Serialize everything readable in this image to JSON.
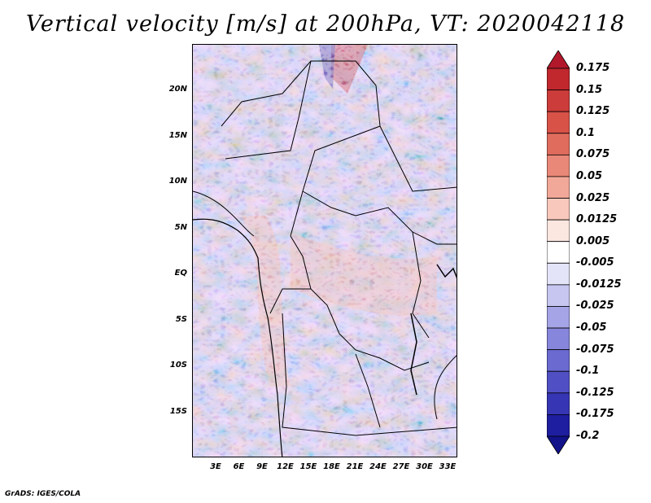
{
  "title": "Vertical velocity [m/s] at 200hPa, VT: 2020042118",
  "credit": "GrADS: IGES/COLA",
  "map": {
    "lat_labels": [
      "20N",
      "15N",
      "10N",
      "5N",
      "EQ",
      "5S",
      "10S",
      "15S"
    ],
    "lon_labels": [
      "3E",
      "6E",
      "9E",
      "12E",
      "15E",
      "18E",
      "21E",
      "24E",
      "27E",
      "30E",
      "33E"
    ]
  },
  "colorbar": {
    "labels": [
      "0.175",
      "0.15",
      "0.125",
      "0.1",
      "0.075",
      "0.05",
      "0.025",
      "0.0125",
      "0.005",
      "-0.005",
      "-0.0125",
      "-0.025",
      "-0.05",
      "-0.075",
      "-0.1",
      "-0.125",
      "-0.175",
      "-0.2"
    ],
    "colors": [
      "#b2182b",
      "#c0282e",
      "#cc3c3a",
      "#d85248",
      "#e06c5e",
      "#e98878",
      "#f2a898",
      "#f8c8bc",
      "#fce6e0",
      "#ffffff",
      "#e4e4f8",
      "#c6c6f0",
      "#a4a4e6",
      "#8686dc",
      "#6a6ad0",
      "#5050c4",
      "#3636b4",
      "#1e1ea0",
      "#12128a"
    ]
  }
}
